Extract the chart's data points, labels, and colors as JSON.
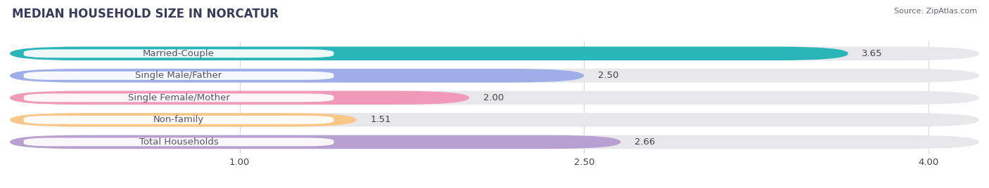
{
  "title": "MEDIAN HOUSEHOLD SIZE IN NORCATUR",
  "source": "Source: ZipAtlas.com",
  "categories": [
    "Married-Couple",
    "Single Male/Father",
    "Single Female/Mother",
    "Non-family",
    "Total Households"
  ],
  "values": [
    3.65,
    2.5,
    2.0,
    1.51,
    2.66
  ],
  "bar_colors": [
    "#2ab5b8",
    "#a0aee8",
    "#f099b8",
    "#f8c888",
    "#b8a0d0"
  ],
  "bar_bg_colors": [
    "#e8e8ec",
    "#e8e8ec",
    "#e8e8ec",
    "#e8e8ec",
    "#e8e8ec"
  ],
  "label_bg_color": "#ffffff",
  "xlim": [
    0,
    4.22
  ],
  "xmin": 0,
  "xticks": [
    1.0,
    2.5,
    4.0
  ],
  "label_fontsize": 9.5,
  "value_fontsize": 9.5,
  "title_fontsize": 12,
  "bar_height": 0.62,
  "bar_gap": 0.38,
  "background_color": "#ffffff",
  "grid_color": "#d8d8d8",
  "text_color": "#555566",
  "value_color": "#444444"
}
